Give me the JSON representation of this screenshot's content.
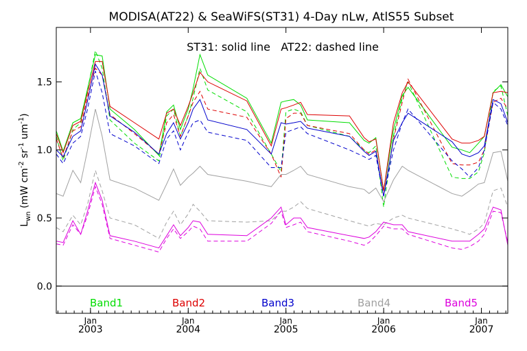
{
  "chart_data": {
    "type": "line",
    "title": "MODISA(AT22) & SeaWiFS(ST31) 4-Day nLw, AtlS55 Subset",
    "annotation": "ST31: solid line   AT22: dashed line",
    "ylabel": "L<sub>wn</sub> (mW cm<sup>-2</sup> sr<sup>-1</sup> um<sup>-1</sup>)",
    "ylabel_parts": {
      "main": "L",
      "sub": "wn",
      "unit": " (mW cm",
      "exp1": "-2",
      "mid": " sr",
      "exp2": "-1",
      "tail": " um",
      "exp3": "-1",
      "close": ")"
    },
    "xlim": [
      2002.65,
      2007.27
    ],
    "ylim": [
      -0.2,
      1.9
    ],
    "yticks": [
      0.0,
      0.5,
      1.0,
      1.5
    ],
    "ytick_labels": [
      "0.0",
      "0.5",
      "1.0",
      "1.5"
    ],
    "xticks": [
      {
        "month": "Jan",
        "year": "2003",
        "x": 2003.0
      },
      {
        "month": "Jan",
        "year": "2004",
        "x": 2004.0
      },
      {
        "month": "Jan",
        "year": "2005",
        "x": 2005.0
      },
      {
        "month": "Jan",
        "year": "2006",
        "x": 2006.0
      },
      {
        "month": "Jan",
        "year": "2007",
        "x": 2007.0
      }
    ],
    "x": [
      2002.65,
      2002.72,
      2002.82,
      2002.9,
      2002.97,
      2003.05,
      2003.12,
      2003.2,
      2003.45,
      2003.7,
      2003.78,
      2003.85,
      2003.92,
      2004.0,
      2004.05,
      2004.12,
      2004.2,
      2004.6,
      2004.85,
      2004.95,
      2005.0,
      2005.08,
      2005.15,
      2005.22,
      2005.65,
      2005.8,
      2005.85,
      2005.92,
      2006.0,
      2006.1,
      2006.19,
      2006.25,
      2006.7,
      2006.8,
      2006.88,
      2006.97,
      2007.03,
      2007.12,
      2007.2,
      2007.27
    ],
    "legend": [
      {
        "name": "Band1",
        "color": "#00dd00"
      },
      {
        "name": "Band2",
        "color": "#dd0000"
      },
      {
        "name": "Band3",
        "color": "#0000cc"
      },
      {
        "name": "Band4",
        "color": "#a0a0a0"
      },
      {
        "name": "Band5",
        "color": "#dd00dd"
      }
    ],
    "series": [
      {
        "name": "Band1",
        "sensor": "ST31",
        "style": "solid",
        "color": "#00dd00",
        "values": [
          1.14,
          0.99,
          1.2,
          1.23,
          1.45,
          1.7,
          1.69,
          1.3,
          1.15,
          0.96,
          1.28,
          1.33,
          1.15,
          1.3,
          1.45,
          1.7,
          1.55,
          1.38,
          1.05,
          1.35,
          1.36,
          1.37,
          1.33,
          1.22,
          1.2,
          1.07,
          1.05,
          1.09,
          0.7,
          1.15,
          1.4,
          1.46,
          1.02,
          1.0,
          0.98,
          1.05,
          1.1,
          1.42,
          1.48,
          1.39
        ]
      },
      {
        "name": "Band1",
        "sensor": "AT22",
        "style": "dashed",
        "color": "#00dd00",
        "values": [
          1.1,
          0.92,
          1.15,
          1.2,
          1.44,
          1.73,
          1.6,
          1.22,
          1.05,
          0.92,
          1.25,
          1.3,
          1.1,
          1.25,
          1.38,
          1.6,
          1.44,
          1.28,
          0.97,
          0.84,
          1.28,
          1.3,
          1.28,
          1.18,
          1.1,
          1.0,
          0.98,
          1.03,
          0.58,
          1.1,
          1.38,
          1.5,
          0.8,
          0.79,
          0.79,
          0.84,
          0.98,
          1.43,
          1.47,
          1.25
        ]
      },
      {
        "name": "Band2",
        "sensor": "ST31",
        "style": "solid",
        "color": "#dd0000",
        "values": [
          1.12,
          0.98,
          1.18,
          1.21,
          1.42,
          1.65,
          1.65,
          1.32,
          1.2,
          1.08,
          1.27,
          1.3,
          1.18,
          1.32,
          1.42,
          1.57,
          1.5,
          1.36,
          1.03,
          1.3,
          1.31,
          1.33,
          1.35,
          1.26,
          1.25,
          1.09,
          1.06,
          1.08,
          0.7,
          1.2,
          1.42,
          1.5,
          1.08,
          1.05,
          1.05,
          1.07,
          1.1,
          1.42,
          1.43,
          1.42
        ]
      },
      {
        "name": "Band2",
        "sensor": "AT22",
        "style": "dashed",
        "color": "#dd0000",
        "values": [
          1.08,
          0.94,
          1.14,
          1.17,
          1.39,
          1.6,
          1.55,
          1.26,
          1.12,
          0.97,
          1.2,
          1.26,
          1.1,
          1.25,
          1.35,
          1.43,
          1.3,
          1.24,
          0.97,
          0.8,
          1.23,
          1.27,
          1.27,
          1.18,
          1.12,
          1.0,
          0.97,
          1.0,
          0.66,
          1.08,
          1.35,
          1.52,
          0.9,
          0.89,
          0.89,
          0.91,
          1.0,
          1.35,
          1.38,
          1.3
        ]
      },
      {
        "name": "Band3",
        "sensor": "ST31",
        "style": "solid",
        "color": "#0000cc",
        "values": [
          1.0,
          0.95,
          1.1,
          1.14,
          1.36,
          1.63,
          1.55,
          1.25,
          1.13,
          0.97,
          1.12,
          1.2,
          1.08,
          1.2,
          1.3,
          1.37,
          1.22,
          1.15,
          0.97,
          1.2,
          1.19,
          1.2,
          1.21,
          1.16,
          1.1,
          0.99,
          0.96,
          0.99,
          0.66,
          1.07,
          1.2,
          1.27,
          1.06,
          0.97,
          0.95,
          0.98,
          1.03,
          1.37,
          1.34,
          1.2
        ]
      },
      {
        "name": "Band3",
        "sensor": "AT22",
        "style": "dashed",
        "color": "#0000cc",
        "values": [
          0.97,
          0.9,
          1.05,
          1.1,
          1.3,
          1.58,
          1.42,
          1.12,
          1.03,
          0.9,
          1.08,
          1.14,
          1.0,
          1.13,
          1.2,
          1.22,
          1.13,
          1.07,
          0.87,
          0.87,
          1.13,
          1.15,
          1.17,
          1.12,
          1.0,
          0.95,
          0.93,
          0.96,
          0.66,
          1.0,
          1.2,
          1.3,
          0.92,
          0.86,
          0.8,
          0.87,
          1.0,
          1.35,
          1.3,
          1.18
        ]
      },
      {
        "name": "Band4",
        "sensor": "ST31",
        "style": "solid",
        "color": "#a0a0a0",
        "values": [
          0.68,
          0.66,
          0.85,
          0.76,
          1.0,
          1.3,
          1.1,
          0.78,
          0.72,
          0.63,
          0.75,
          0.86,
          0.74,
          0.8,
          0.83,
          0.88,
          0.82,
          0.77,
          0.73,
          0.82,
          0.82,
          0.85,
          0.88,
          0.82,
          0.73,
          0.71,
          0.68,
          0.72,
          0.62,
          0.78,
          0.88,
          0.85,
          0.68,
          0.66,
          0.7,
          0.75,
          0.76,
          0.98,
          0.99,
          0.77
        ]
      },
      {
        "name": "Band4",
        "sensor": "AT22",
        "style": "dashed",
        "color": "#a0a0a0",
        "values": [
          0.43,
          0.4,
          0.52,
          0.45,
          0.6,
          0.85,
          0.7,
          0.5,
          0.45,
          0.35,
          0.47,
          0.55,
          0.45,
          0.53,
          0.6,
          0.55,
          0.48,
          0.47,
          0.48,
          0.55,
          0.55,
          0.58,
          0.62,
          0.57,
          0.48,
          0.45,
          0.44,
          0.46,
          0.45,
          0.5,
          0.52,
          0.5,
          0.42,
          0.4,
          0.38,
          0.42,
          0.46,
          0.7,
          0.72,
          0.58
        ]
      },
      {
        "name": "Band5",
        "sensor": "ST31",
        "style": "solid",
        "color": "#dd00dd",
        "values": [
          0.33,
          0.32,
          0.48,
          0.38,
          0.55,
          0.76,
          0.63,
          0.37,
          0.33,
          0.28,
          0.37,
          0.45,
          0.37,
          0.43,
          0.48,
          0.47,
          0.38,
          0.37,
          0.5,
          0.58,
          0.45,
          0.5,
          0.5,
          0.43,
          0.37,
          0.35,
          0.36,
          0.4,
          0.47,
          0.45,
          0.45,
          0.4,
          0.33,
          0.33,
          0.33,
          0.38,
          0.42,
          0.58,
          0.56,
          0.3
        ]
      },
      {
        "name": "Band5",
        "sensor": "AT22",
        "style": "dashed",
        "color": "#dd00dd",
        "values": [
          0.31,
          0.3,
          0.45,
          0.38,
          0.52,
          0.73,
          0.6,
          0.35,
          0.3,
          0.25,
          0.35,
          0.42,
          0.35,
          0.4,
          0.44,
          0.42,
          0.33,
          0.33,
          0.46,
          0.55,
          0.43,
          0.45,
          0.47,
          0.4,
          0.33,
          0.3,
          0.32,
          0.37,
          0.44,
          0.42,
          0.42,
          0.38,
          0.28,
          0.27,
          0.29,
          0.33,
          0.38,
          0.55,
          0.54,
          0.32
        ]
      }
    ]
  }
}
